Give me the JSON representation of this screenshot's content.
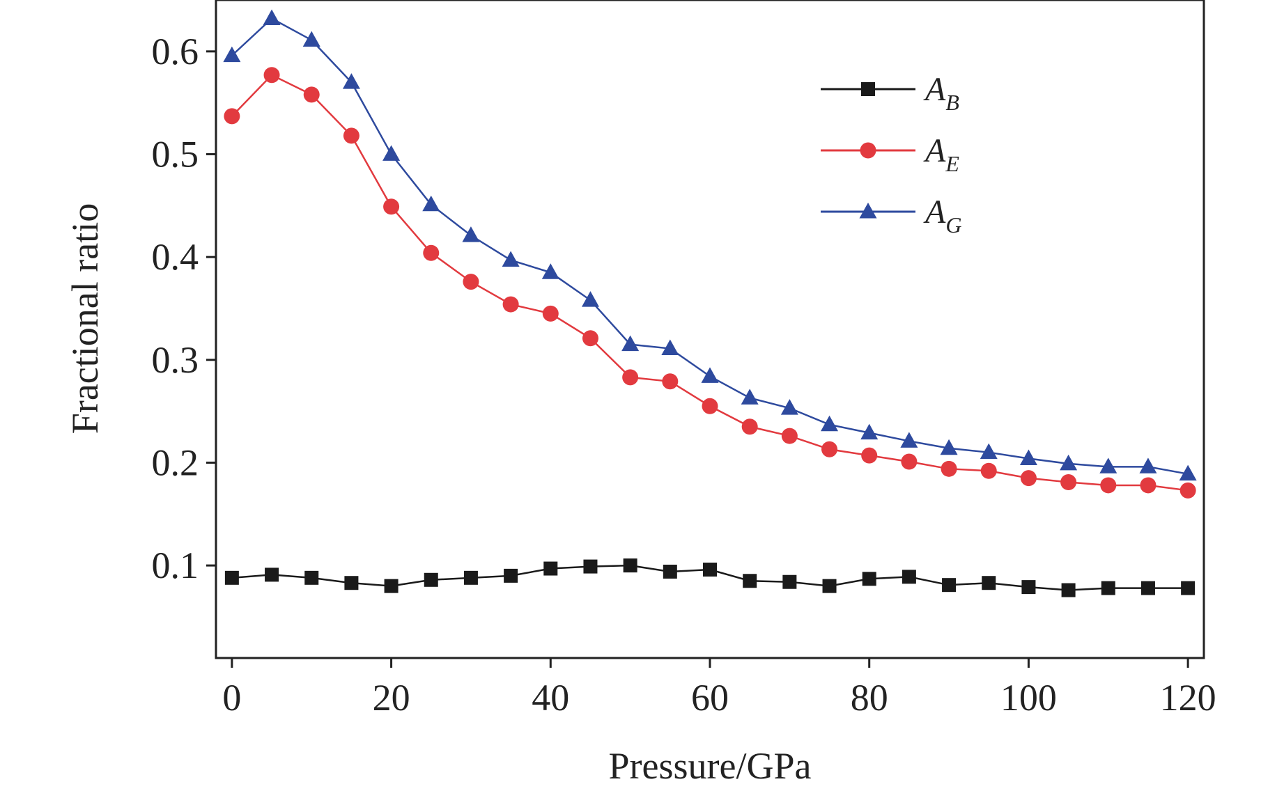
{
  "chart_data": {
    "type": "line",
    "xlabel": "Pressure/GPa",
    "ylabel": "Fractional ratio",
    "xlim": [
      -2,
      122
    ],
    "ylim": [
      0.01,
      0.65
    ],
    "xticks": [
      0,
      20,
      40,
      60,
      80,
      100,
      120
    ],
    "yticks": [
      0.1,
      0.2,
      0.3,
      0.4,
      0.5,
      0.6
    ],
    "grid": false,
    "legend_position": "top-right",
    "x": [
      0,
      5,
      10,
      15,
      20,
      25,
      30,
      35,
      40,
      45,
      50,
      55,
      60,
      65,
      70,
      75,
      80,
      85,
      90,
      95,
      100,
      105,
      110,
      115,
      120
    ],
    "series": [
      {
        "name": "A_B",
        "label_main": "A",
        "label_sub": "B",
        "marker": "square",
        "color": "#1a1a1a",
        "values": [
          0.088,
          0.091,
          0.088,
          0.083,
          0.08,
          0.086,
          0.088,
          0.09,
          0.097,
          0.099,
          0.1,
          0.094,
          0.096,
          0.085,
          0.084,
          0.08,
          0.087,
          0.089,
          0.081,
          0.083,
          0.079,
          0.076,
          0.078,
          0.078,
          0.078
        ]
      },
      {
        "name": "A_E",
        "label_main": "A",
        "label_sub": "E",
        "marker": "circle",
        "color": "#e23a3f",
        "values": [
          0.537,
          0.577,
          0.558,
          0.518,
          0.449,
          0.404,
          0.376,
          0.354,
          0.345,
          0.321,
          0.283,
          0.279,
          0.255,
          0.235,
          0.226,
          0.213,
          0.207,
          0.201,
          0.194,
          0.192,
          0.185,
          0.181,
          0.178,
          0.178,
          0.173
        ]
      },
      {
        "name": "A_G",
        "label_main": "A",
        "label_sub": "G",
        "marker": "triangle",
        "color": "#2e4a9e",
        "values": [
          0.596,
          0.632,
          0.611,
          0.57,
          0.5,
          0.451,
          0.421,
          0.397,
          0.385,
          0.358,
          0.315,
          0.311,
          0.284,
          0.263,
          0.253,
          0.237,
          0.229,
          0.221,
          0.214,
          0.21,
          0.204,
          0.199,
          0.196,
          0.196,
          0.189
        ]
      }
    ]
  }
}
